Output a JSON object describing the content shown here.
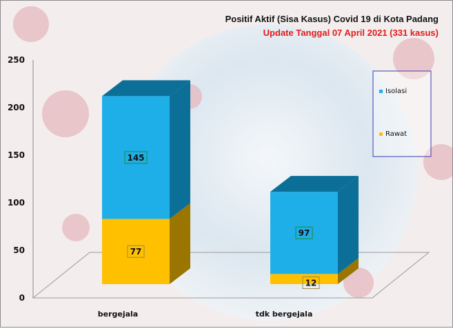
{
  "chart_data": {
    "type": "bar",
    "stacked": true,
    "three_d": true,
    "title": "Positif Aktif  (Sisa Kasus) Covid 19 di Kota Padang",
    "subtitle": "Update Tanggal 07 April 2021  (331 kasus)",
    "categories": [
      "bergejala",
      "tdk bergejala"
    ],
    "series": [
      {
        "name": "Rawat",
        "values": [
          77,
          12
        ],
        "color": "#ffc000",
        "side_color": "#9a7500"
      },
      {
        "name": "Isolasi",
        "values": [
          145,
          97
        ],
        "color": "#1eaee8",
        "side_color": "#0b6f98"
      }
    ],
    "ylim": [
      0,
      250
    ],
    "yticks": [
      "0",
      "50",
      "100",
      "150",
      "200",
      "250"
    ],
    "xlabel": "",
    "ylabel": "",
    "legend_position": "right",
    "grid": false,
    "background_image": "faded covid virus and globe photo"
  }
}
